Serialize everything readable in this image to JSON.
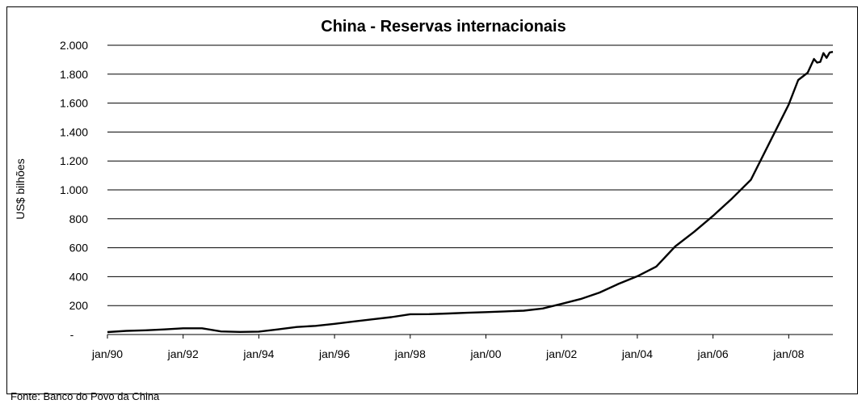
{
  "chart_data": {
    "type": "line",
    "title": "China - Reservas internacionais",
    "xlabel": "",
    "ylabel": "US$ bilhões",
    "ylim": [
      0,
      2000
    ],
    "yticks": [
      0,
      200,
      400,
      600,
      800,
      1000,
      1200,
      1400,
      1600,
      1800,
      2000
    ],
    "ytick_labels": [
      "-",
      "200",
      "400",
      "600",
      "800",
      "1.000",
      "1.200",
      "1.400",
      "1.600",
      "1.800",
      "2.000"
    ],
    "xlim": [
      "jan/90",
      "mar/09"
    ],
    "xtick_labels": [
      "jan/90",
      "jan/92",
      "jan/94",
      "jan/96",
      "jan/98",
      "jan/00",
      "jan/02",
      "jan/04",
      "jan/06",
      "jan/08"
    ],
    "grid": true,
    "line_color": "#000000",
    "series": [
      {
        "points": [
          [
            "jan/90",
            17
          ],
          [
            "jul/90",
            25
          ],
          [
            "jan/91",
            29
          ],
          [
            "jul/91",
            35
          ],
          [
            "jan/92",
            43
          ],
          [
            "jul/92",
            43
          ],
          [
            "jan/93",
            21
          ],
          [
            "jul/93",
            18
          ],
          [
            "jan/94",
            20
          ],
          [
            "jul/94",
            35
          ],
          [
            "jan/95",
            52
          ],
          [
            "jul/95",
            60
          ],
          [
            "jan/96",
            74
          ],
          [
            "jul/96",
            90
          ],
          [
            "jan/97",
            105
          ],
          [
            "jul/97",
            120
          ],
          [
            "jan/98",
            140
          ],
          [
            "jul/98",
            141
          ],
          [
            "jan/99",
            145
          ],
          [
            "jul/99",
            150
          ],
          [
            "jan/00",
            155
          ],
          [
            "jul/00",
            160
          ],
          [
            "jan/01",
            165
          ],
          [
            "jul/01",
            180
          ],
          [
            "jan/02",
            212
          ],
          [
            "jul/02",
            245
          ],
          [
            "jan/03",
            290
          ],
          [
            "jul/03",
            350
          ],
          [
            "jan/04",
            403
          ],
          [
            "jul/04",
            470
          ],
          [
            "jan/05",
            609
          ],
          [
            "jul/05",
            710
          ],
          [
            "jan/06",
            820
          ],
          [
            "jul/06",
            940
          ],
          [
            "jan/07",
            1070
          ],
          [
            "jul/07",
            1330
          ],
          [
            "jan/08",
            1590
          ],
          [
            "abr/08",
            1760
          ],
          [
            "jul/08",
            1810
          ],
          [
            "set/08",
            1905
          ],
          [
            "out/08",
            1880
          ],
          [
            "nov/08",
            1885
          ],
          [
            "dez/08",
            1946
          ],
          [
            "jan/09",
            1913
          ],
          [
            "fev/09",
            1950
          ],
          [
            "mar/09",
            1954
          ]
        ]
      }
    ]
  },
  "source_note": "Fonte: Banco do Povo da China"
}
